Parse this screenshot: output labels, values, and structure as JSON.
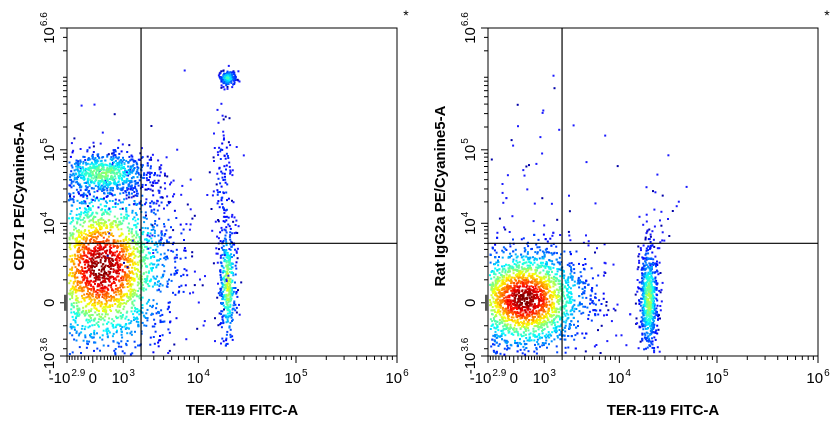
{
  "chart_data": [
    {
      "type": "scatter",
      "subtype": "flow-cytometry-density-dot-plot",
      "xlabel": "TER-119 FITC-A",
      "ylabel": "CD71 PE/Cyanine5-A",
      "marker": "*",
      "x_scale": "biexponential",
      "y_scale": "biexponential",
      "xlim": [
        -794,
        1000000
      ],
      "ylim": [
        -3981,
        3981071
      ],
      "x_ticks": [
        {
          "base": "-10",
          "exp": "2.9"
        },
        {
          "base": "0",
          "exp": ""
        },
        {
          "base": "10",
          "exp": "3"
        },
        {
          "base": "10",
          "exp": "4"
        },
        {
          "base": "10",
          "exp": "5"
        },
        {
          "base": "10",
          "exp": "6"
        }
      ],
      "y_ticks": [
        {
          "base": "-10",
          "exp": "3.6"
        },
        {
          "base": "0",
          "exp": ""
        },
        {
          "base": "10",
          "exp": "4"
        },
        {
          "base": "10",
          "exp": "5"
        },
        {
          "base": "10",
          "exp": "6.6"
        }
      ],
      "gate": {
        "x": 1995,
        "y": 5012
      },
      "populations": [
        {
          "x": 200,
          "y": 2000,
          "sx": 1.0,
          "sy": 1.6,
          "n": 2600,
          "peak": 1.0
        },
        {
          "x": 250,
          "y": 50000,
          "sx": 0.7,
          "sy": 0.45,
          "n": 700,
          "peak": 0.45
        },
        {
          "x": 20000,
          "y": 800,
          "sx": 0.12,
          "sy": 1.1,
          "n": 380,
          "peak": 0.55
        },
        {
          "x": 20000,
          "y": 900000,
          "sx": 0.12,
          "sy": 0.15,
          "n": 160,
          "peak": 0.35
        },
        {
          "x": 18000,
          "y": 30000,
          "sx": 0.15,
          "sy": 1.6,
          "n": 120,
          "peak": 0.05
        },
        {
          "x": 3000,
          "y": 20000,
          "sx": 0.7,
          "sy": 1.5,
          "n": 60,
          "peak": 0.0
        }
      ],
      "grid": false
    },
    {
      "type": "scatter",
      "subtype": "flow-cytometry-density-dot-plot",
      "xlabel": "TER-119 FITC-A",
      "ylabel": "Rat IgG2a PE/Cyanine5-A",
      "marker": "*",
      "x_scale": "biexponential",
      "y_scale": "biexponential",
      "xlim": [
        -794,
        1000000
      ],
      "ylim": [
        -3981,
        3981071
      ],
      "x_ticks": [
        {
          "base": "-10",
          "exp": "2.9"
        },
        {
          "base": "0",
          "exp": ""
        },
        {
          "base": "10",
          "exp": "3"
        },
        {
          "base": "10",
          "exp": "4"
        },
        {
          "base": "10",
          "exp": "5"
        },
        {
          "base": "10",
          "exp": "6"
        }
      ],
      "y_ticks": [
        {
          "base": "-10",
          "exp": "3.6"
        },
        {
          "base": "0",
          "exp": ""
        },
        {
          "base": "10",
          "exp": "4"
        },
        {
          "base": "10",
          "exp": "5"
        },
        {
          "base": "10",
          "exp": "6.6"
        }
      ],
      "gate": {
        "x": 1995,
        "y": 5012
      },
      "populations": [
        {
          "x": 250,
          "y": 150,
          "sx": 0.9,
          "sy": 1.0,
          "n": 2600,
          "peak": 1.0
        },
        {
          "x": 20000,
          "y": 150,
          "sx": 0.13,
          "sy": 1.0,
          "n": 650,
          "peak": 0.5
        },
        {
          "x": 400,
          "y": 60000,
          "sx": 1.2,
          "sy": 1.4,
          "n": 45,
          "peak": 0.0
        },
        {
          "x": 25000,
          "y": 20000,
          "sx": 0.3,
          "sy": 1.0,
          "n": 25,
          "peak": 0.0
        }
      ],
      "grid": false
    }
  ]
}
